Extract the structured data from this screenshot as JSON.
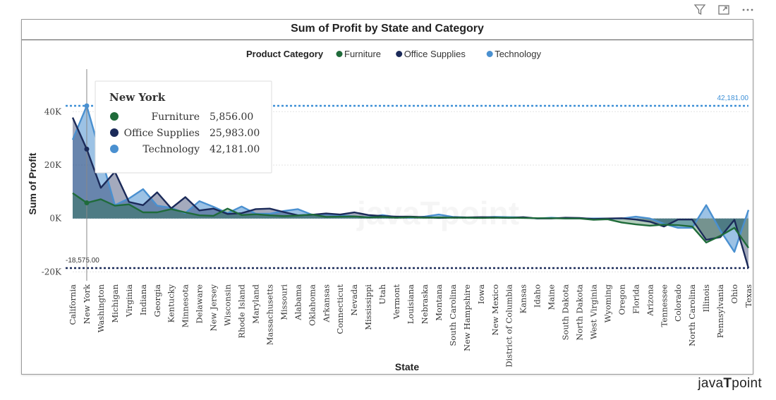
{
  "header": {
    "icons": [
      "filter-icon",
      "focus-mode-icon",
      "more-options-icon"
    ]
  },
  "chart_data": {
    "type": "area",
    "title": "Sum of Profit by State and Category",
    "xlabel": "State",
    "ylabel": "Sum of Profit",
    "legend_title": "Product Category",
    "legend_position": "top-center",
    "ylim": [
      -22000,
      48000
    ],
    "yticks": [
      -20000,
      0,
      20000,
      40000
    ],
    "ytick_labels": [
      "-20K",
      "0K",
      "20K",
      "40K"
    ],
    "categories": [
      "California",
      "New York",
      "Washington",
      "Michigan",
      "Virginia",
      "Indiana",
      "Georgia",
      "Kentucky",
      "Minnesota",
      "Delaware",
      "New Jersey",
      "Wisconsin",
      "Rhode Island",
      "Maryland",
      "Massachusetts",
      "Missouri",
      "Alabama",
      "Oklahoma",
      "Arkansas",
      "Connecticut",
      "Nevada",
      "Mississippi",
      "Utah",
      "Vermont",
      "Louisiana",
      "Nebraska",
      "Montana",
      "South Carolina",
      "New Hampshire",
      "Iowa",
      "New Mexico",
      "District of Columbia",
      "Kansas",
      "Idaho",
      "Maine",
      "South Dakota",
      "North Dakota",
      "West Virginia",
      "Wyoming",
      "Oregon",
      "Florida",
      "Arizona",
      "Tennessee",
      "Colorado",
      "North Carolina",
      "Illinois",
      "Pennsylvania",
      "Ohio",
      "Texas"
    ],
    "series": [
      {
        "name": "Furniture",
        "color": "#1f6b3a",
        "values": [
          9500,
          5856,
          7200,
          4800,
          5300,
          2300,
          2300,
          3500,
          2300,
          1200,
          1000,
          3700,
          1300,
          1600,
          1200,
          900,
          1100,
          1500,
          600,
          700,
          800,
          400,
          600,
          300,
          500,
          300,
          400,
          300,
          300,
          200,
          300,
          300,
          200,
          100,
          100,
          0,
          0,
          -500,
          -300,
          -1500,
          -2200,
          -2700,
          -2300,
          -2500,
          -3000,
          -9000,
          -6500,
          -3500,
          -11000
        ]
      },
      {
        "name": "Office Supplies",
        "color": "#1b2a59",
        "values": [
          37800,
          25983,
          11500,
          17500,
          6200,
          5000,
          9800,
          3800,
          8000,
          3000,
          3700,
          1700,
          2000,
          3500,
          3700,
          2400,
          1200,
          1400,
          1900,
          1500,
          2300,
          1300,
          900,
          700,
          700,
          500,
          200,
          400,
          400,
          500,
          400,
          200,
          500,
          0,
          0,
          300,
          200,
          -200,
          0,
          100,
          -400,
          -1200,
          -3000,
          -400,
          -400,
          -8000,
          -7000,
          -500,
          -18575
        ]
      },
      {
        "name": "Technology",
        "color": "#4a90d0",
        "values": [
          29500,
          42181,
          23500,
          5000,
          7500,
          11000,
          4800,
          4000,
          2000,
          6500,
          4400,
          2000,
          4500,
          1800,
          1800,
          2800,
          3500,
          1400,
          1700,
          1200,
          800,
          500,
          1300,
          500,
          300,
          700,
          1500,
          600,
          400,
          400,
          600,
          500,
          400,
          0,
          300,
          0,
          0,
          0,
          0,
          0,
          700,
          0,
          -2000,
          -3500,
          -3500,
          5000,
          -4500,
          -12500,
          3200
        ]
      }
    ],
    "reference_lines": [
      {
        "label": "42,181.00",
        "value": 42181,
        "color": "#3d8fd6",
        "style": "dotted"
      },
      {
        "label": "-18,575.00",
        "value": -18575,
        "color": "#1b2a59",
        "style": "dotted"
      }
    ],
    "tooltip": {
      "state": "New York",
      "rows": [
        {
          "name": "Furniture",
          "value": "5,856.00"
        },
        {
          "name": "Office Supplies",
          "value": "25,983.00"
        },
        {
          "name": "Technology",
          "value": "42,181.00"
        }
      ]
    }
  },
  "watermark": "javaTpoint",
  "brand": {
    "pre": "java",
    "mid": "T",
    "post": "point"
  }
}
